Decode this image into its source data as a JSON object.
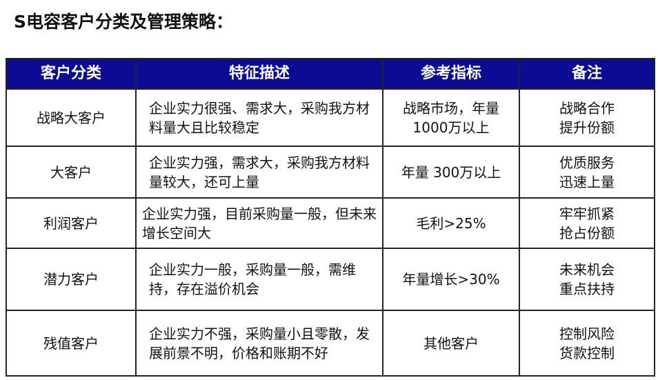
{
  "title": "S电容客户分类及管理策略：",
  "table": {
    "headers": [
      "客户分类",
      "特征描述",
      "参考指标",
      "备注"
    ],
    "rows": [
      {
        "category": "战略大客户",
        "description": "企业实力很强、需求大，采购我方材料量大且比较稳定",
        "indicator": "战略市场，年量1000万以上",
        "note_line1": "战略合作",
        "note_line2": "提升份额"
      },
      {
        "category": "大客户",
        "description": "企业实力强，需求大，采购我方材料量较大，还可上量",
        "indicator": "年量 300万以上",
        "note_line1": "优质服务",
        "note_line2": "迅速上量"
      },
      {
        "category": "利润客户",
        "description": "企业实力强，目前采购量一般，但未来增长空间大",
        "indicator": "毛利>25%",
        "note_line1": "牢牢抓紧",
        "note_line2": "抢占份额"
      },
      {
        "category": "潜力客户",
        "description": "企业实力一般，采购量一般，需维持，存在溢价机会",
        "indicator": "年量增长>30%",
        "note_line1": "未来机会",
        "note_line2": "重点扶持"
      },
      {
        "category": "残值客户",
        "description": "企业实力不强，采购量小且零散，发展前景不明，价格和账期不好",
        "indicator": "其他客户",
        "note_line1": "控制风险",
        "note_line2": "货款控制"
      }
    ]
  }
}
